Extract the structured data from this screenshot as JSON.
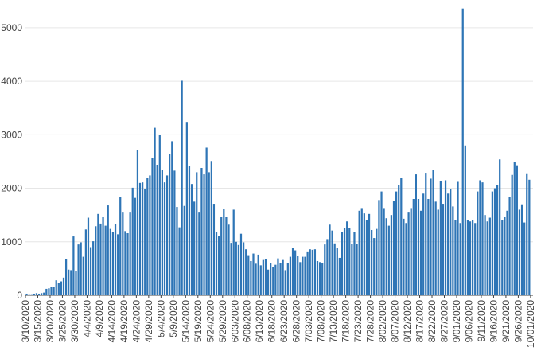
{
  "chart_data": {
    "type": "bar",
    "title": "",
    "xlabel": "",
    "ylabel": "",
    "ylim": [
      0,
      5400
    ],
    "grid": true,
    "bar_color": "#2e75b6",
    "yticks": [
      0,
      1000,
      2000,
      3000,
      4000,
      5000
    ],
    "ytick_labels": [
      "0",
      "1000",
      "2000",
      "3000",
      "4000",
      "5000"
    ],
    "xtick_labels": [
      "3/10/2020",
      "3/15/2020",
      "3/20/2020",
      "3/25/2020",
      "3/30/2020",
      "4/4/2020",
      "4/9/2020",
      "4/14/2020",
      "4/19/2020",
      "4/24/2020",
      "4/29/2020",
      "5/4/2020",
      "5/9/2020",
      "5/14/2020",
      "5/19/2020",
      "5/24/2020",
      "5/29/2020",
      "6/03/2020",
      "6/08/2020",
      "6/13/2020",
      "6/18/2020",
      "6/23/2020",
      "6/28/2020",
      "7/03/2020",
      "7/08/2020",
      "7/13/2020",
      "7/18/2020",
      "7/23/2020",
      "7/28/2020",
      "8/02/2020",
      "8/07/2020",
      "8/12/2020",
      "8/17/2020",
      "8/22/2020",
      "8/27/2020",
      "9/01/2020",
      "9/06/2020",
      "9/11/2020",
      "9/16/2020",
      "9/21/2020",
      "9/26/2020",
      "10/01/2020"
    ],
    "x_start": "3/10/2020",
    "x_end": "10/02/2020",
    "values": [
      30,
      20,
      20,
      30,
      40,
      30,
      40,
      50,
      120,
      130,
      150,
      160,
      280,
      230,
      260,
      330,
      680,
      480,
      470,
      1100,
      450,
      950,
      990,
      720,
      1230,
      1450,
      900,
      1010,
      1290,
      1520,
      1340,
      1460,
      1300,
      1680,
      1240,
      1180,
      1330,
      1140,
      1840,
      1560,
      1200,
      1160,
      1560,
      2010,
      1820,
      2720,
      2100,
      2110,
      1980,
      2200,
      2240,
      2560,
      3130,
      2440,
      3000,
      2340,
      2110,
      2240,
      2640,
      2880,
      2330,
      1650,
      1270,
      4010,
      1670,
      3240,
      2420,
      2080,
      1750,
      2300,
      1560,
      2380,
      2260,
      2760,
      2300,
      2510,
      1710,
      1180,
      1110,
      1470,
      1610,
      1470,
      1320,
      980,
      1600,
      1000,
      940,
      1150,
      990,
      860,
      750,
      640,
      780,
      590,
      760,
      560,
      660,
      680,
      480,
      600,
      530,
      570,
      690,
      610,
      660,
      470,
      600,
      720,
      890,
      840,
      730,
      620,
      720,
      720,
      820,
      860,
      850,
      860,
      640,
      620,
      600,
      950,
      1050,
      1320,
      1210,
      970,
      890,
      700,
      1190,
      1260,
      1380,
      1260,
      960,
      1180,
      960,
      1580,
      1630,
      1530,
      1400,
      1520,
      1220,
      1070,
      1240,
      1780,
      1940,
      1630,
      1440,
      1300,
      1500,
      1760,
      1940,
      2060,
      2190,
      1430,
      1350,
      1560,
      1630,
      1800,
      2260,
      1800,
      1580,
      1900,
      2290,
      1800,
      2180,
      2350,
      1750,
      1600,
      2130,
      1710,
      2150,
      1900,
      1990,
      1660,
      1400,
      2120,
      1350,
      5360,
      2800,
      1400,
      1380,
      1400,
      1350,
      1940,
      2150,
      2110,
      1500,
      1380,
      1450,
      1940,
      2000,
      2060,
      2540,
      1400,
      1470,
      1580,
      1840,
      2250,
      2490,
      2430,
      1600,
      1700,
      1360,
      2280,
      2160
    ]
  }
}
